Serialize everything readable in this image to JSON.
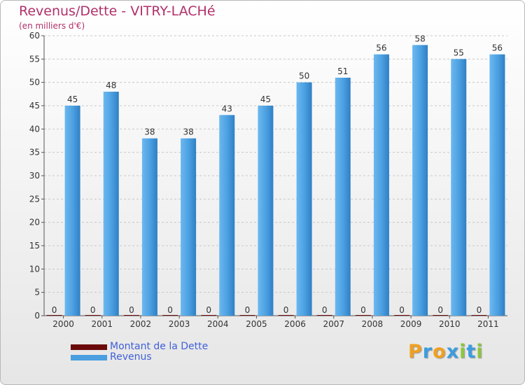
{
  "chart_data": {
    "type": "bar",
    "title": "Revenus/Dette - VITRY-LACHé",
    "subtitle": "(en milliers d'€)",
    "categories": [
      "2000",
      "2001",
      "2002",
      "2003",
      "2004",
      "2005",
      "2006",
      "2007",
      "2008",
      "2009",
      "2010",
      "2011"
    ],
    "series": [
      {
        "name": "Montant de la Dette",
        "values": [
          0,
          0,
          0,
          0,
          0,
          0,
          0,
          0,
          0,
          0,
          0,
          0
        ],
        "color": "#6b0a0a"
      },
      {
        "name": "Revenus",
        "values": [
          45,
          48,
          38,
          38,
          43,
          45,
          50,
          51,
          56,
          58,
          55,
          56
        ],
        "color": "#4a9fe0"
      }
    ],
    "ylim": [
      0,
      60
    ],
    "yticks": [
      0,
      5,
      10,
      15,
      20,
      25,
      30,
      35,
      40,
      45,
      50,
      55,
      60
    ],
    "grid": true,
    "legend_position": "bottom-left"
  },
  "brand": {
    "letters": [
      "P",
      "r",
      "o",
      "x",
      "i",
      "t",
      "i"
    ],
    "colors": [
      "#f0a020",
      "#3c9de0",
      "#f0a020",
      "#3c9de0",
      "#8cc63f",
      "#3c9de0",
      "#8cc63f"
    ]
  }
}
